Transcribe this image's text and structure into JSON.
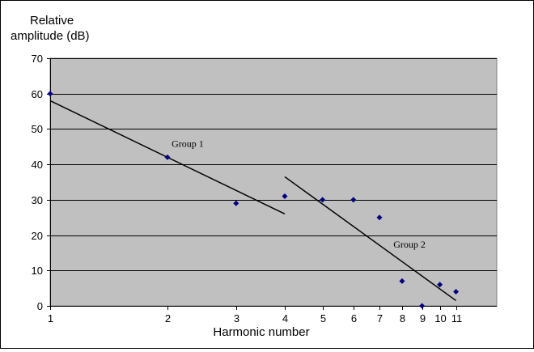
{
  "chart_data": {
    "type": "scatter",
    "title": "",
    "ylabel_line1": "Relative",
    "ylabel_line2": "amplitude (dB)",
    "xlabel": "Harmonic number",
    "x_scale": "log",
    "xlim": [
      1,
      14
    ],
    "ylim": [
      0,
      70
    ],
    "y_ticks": [
      0,
      10,
      20,
      30,
      40,
      50,
      60,
      70
    ],
    "x_ticks": [
      1,
      2,
      3,
      4,
      5,
      6,
      7,
      8,
      9,
      10,
      11
    ],
    "grid": "horizontal",
    "plot_background": "#c0c0c0",
    "marker_color": "#000080",
    "line_color": "#000000",
    "series": [
      {
        "x": [
          1,
          2,
          3,
          4,
          5,
          6,
          7,
          8,
          9,
          10,
          11
        ],
        "y": [
          60,
          42,
          29,
          31,
          30,
          30,
          25,
          7,
          0,
          6,
          4
        ]
      }
    ],
    "trend_lines": [
      {
        "x": [
          1,
          4
        ],
        "y": [
          58,
          26
        ]
      },
      {
        "x": [
          4,
          11
        ],
        "y": [
          36.5,
          1.5
        ]
      }
    ],
    "annotations": [
      {
        "text": "Group 1",
        "x": 2.05,
        "y": 45
      },
      {
        "text": "Group 2",
        "x": 7.6,
        "y": 16.5
      }
    ]
  }
}
